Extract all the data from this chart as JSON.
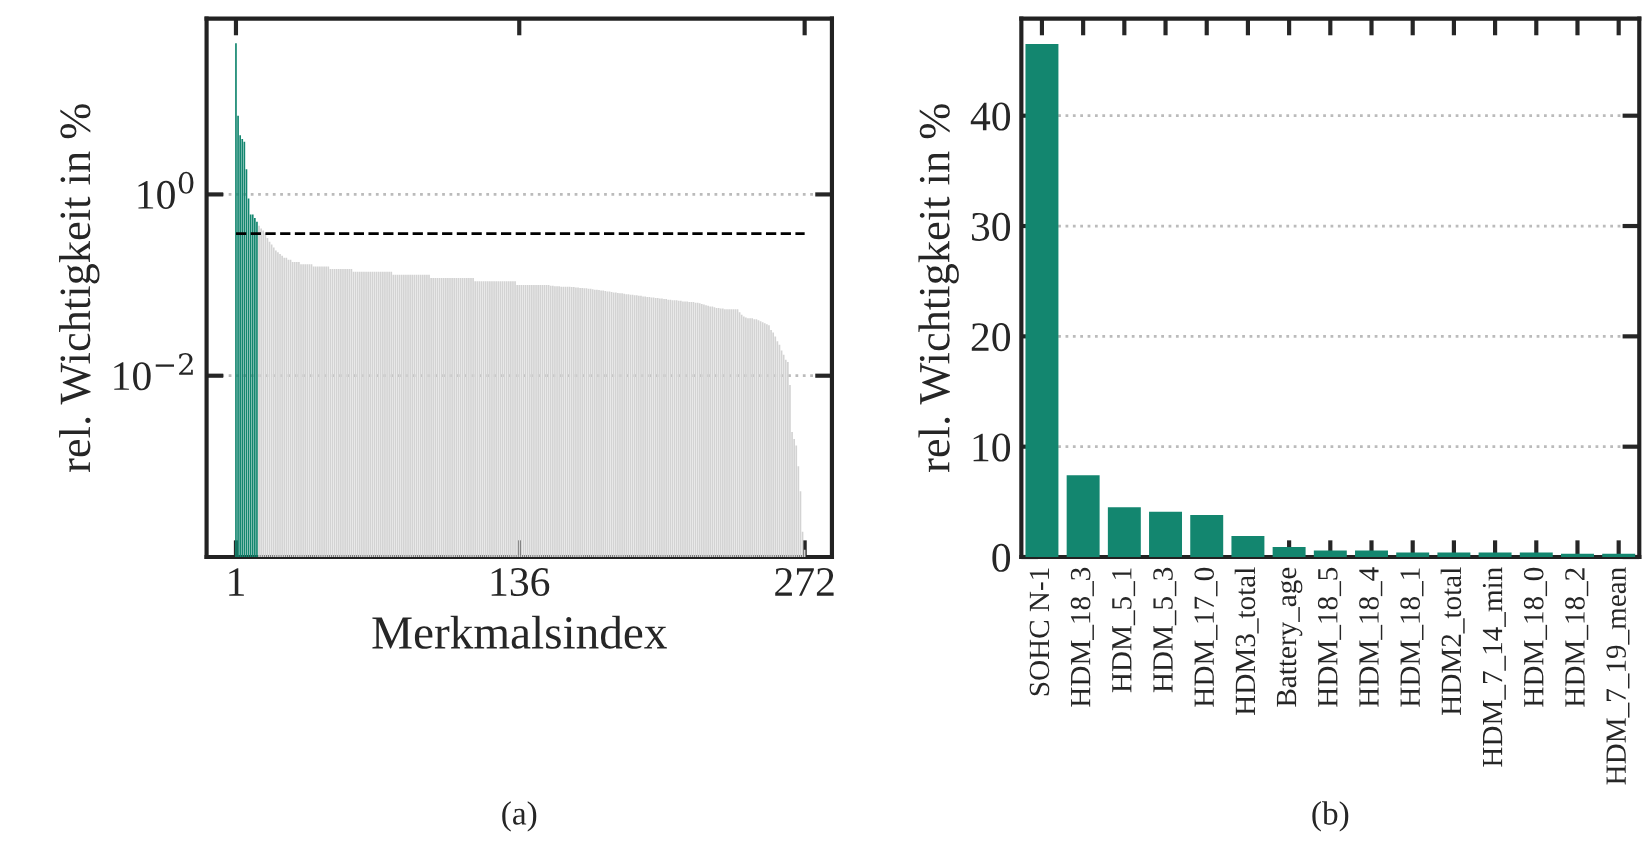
{
  "chart_data": [
    {
      "type": "bar",
      "xlabel": "Merkmalsindex",
      "ylabel": "rel. Wichtigkeit in %",
      "log": "y",
      "grid": "y",
      "xlim": [
        -13,
        285
      ],
      "xticks": [
        1,
        136,
        272
      ],
      "ylim": [
        0.0001,
        87
      ],
      "yticks": [
        {
          "value": 1,
          "label": "10$^{0}$"
        },
        {
          "value": 0.01,
          "label": "10$^{−2}$"
        }
      ],
      "ref_lines": [
        {
          "axis": "y",
          "value": 0.37,
          "color": "#000000",
          "line_style": "dashed"
        }
      ],
      "annotations": [
        "(a)"
      ],
      "series": [
        {
          "color": "#13866f",
          "x": [
            1,
            2,
            3,
            4,
            5,
            6,
            7,
            8,
            9,
            10,
            11
          ],
          "values": [
            46.5,
            7.4,
            4.5,
            4.1,
            3.8,
            1.9,
            0.9,
            0.6,
            0.6,
            0.55,
            0.5
          ]
        },
        {
          "color": "#d3d3d3",
          "x": [
            12,
            13,
            14,
            15,
            16,
            17,
            18,
            19,
            20,
            21,
            22,
            23,
            24,
            25,
            26,
            27,
            28,
            29,
            30,
            31,
            32,
            33,
            34,
            35,
            36,
            37,
            38,
            39,
            40,
            41,
            42,
            43,
            44,
            45,
            46,
            47,
            48,
            49,
            50,
            51,
            52,
            53,
            54,
            55,
            56,
            57,
            58,
            59,
            60,
            61,
            62,
            63,
            64,
            65,
            66,
            67,
            68,
            69,
            70,
            71,
            72,
            73,
            74,
            75,
            76,
            77,
            78,
            79,
            80,
            81,
            82,
            83,
            84,
            85,
            86,
            87,
            88,
            89,
            90,
            91,
            92,
            93,
            94,
            95,
            96,
            97,
            98,
            99,
            100,
            101,
            102,
            103,
            104,
            105,
            106,
            107,
            108,
            109,
            110,
            111,
            112,
            113,
            114,
            115,
            116,
            117,
            118,
            119,
            120,
            121,
            122,
            123,
            124,
            125,
            126,
            127,
            128,
            129,
            130,
            131,
            132,
            133,
            134,
            135,
            136,
            137,
            138,
            139,
            140,
            141,
            142,
            143,
            144,
            145,
            146,
            147,
            148,
            149,
            150,
            151,
            152,
            153,
            154,
            155,
            156,
            157,
            158,
            159,
            160,
            161,
            162,
            163,
            164,
            165,
            166,
            167,
            168,
            169,
            170,
            171,
            172,
            173,
            174,
            175,
            176,
            177,
            178,
            179,
            180,
            181,
            182,
            183,
            184,
            185,
            186,
            187,
            188,
            189,
            190,
            191,
            192,
            193,
            194,
            195,
            196,
            197,
            198,
            199,
            200,
            201,
            202,
            203,
            204,
            205,
            206,
            207,
            208,
            209,
            210,
            211,
            212,
            213,
            214,
            215,
            216,
            217,
            218,
            219,
            220,
            221,
            222,
            223,
            224,
            225,
            226,
            227,
            228,
            229,
            230,
            231,
            232,
            233,
            234,
            235,
            236,
            237,
            238,
            239,
            240,
            241,
            242,
            243,
            244,
            245,
            246,
            247,
            248,
            249,
            250,
            251,
            252,
            253,
            254,
            255,
            256,
            257,
            258,
            259,
            260,
            261,
            262,
            263,
            264,
            265,
            266,
            267,
            268,
            269,
            270,
            271,
            272
          ],
          "values": [
            0.45,
            0.42,
            0.4,
            0.37,
            0.33,
            0.3,
            0.28,
            0.26,
            0.24,
            0.23,
            0.22,
            0.21,
            0.2,
            0.2,
            0.19,
            0.19,
            0.18,
            0.18,
            0.18,
            0.18,
            0.17,
            0.17,
            0.17,
            0.17,
            0.17,
            0.17,
            0.16,
            0.16,
            0.16,
            0.16,
            0.16,
            0.16,
            0.16,
            0.16,
            0.15,
            0.15,
            0.15,
            0.15,
            0.15,
            0.15,
            0.15,
            0.15,
            0.15,
            0.15,
            0.15,
            0.14,
            0.14,
            0.14,
            0.14,
            0.14,
            0.14,
            0.14,
            0.14,
            0.14,
            0.14,
            0.14,
            0.14,
            0.14,
            0.14,
            0.14,
            0.14,
            0.14,
            0.14,
            0.14,
            0.13,
            0.13,
            0.13,
            0.13,
            0.13,
            0.13,
            0.13,
            0.13,
            0.13,
            0.13,
            0.13,
            0.13,
            0.13,
            0.13,
            0.13,
            0.13,
            0.13,
            0.13,
            0.12,
            0.12,
            0.12,
            0.12,
            0.12,
            0.12,
            0.12,
            0.12,
            0.12,
            0.12,
            0.12,
            0.12,
            0.12,
            0.12,
            0.12,
            0.12,
            0.12,
            0.12,
            0.12,
            0.12,
            0.12,
            0.11,
            0.11,
            0.11,
            0.11,
            0.11,
            0.11,
            0.11,
            0.11,
            0.11,
            0.11,
            0.11,
            0.11,
            0.11,
            0.11,
            0.11,
            0.11,
            0.11,
            0.11,
            0.11,
            0.11,
            0.1,
            0.1,
            0.1,
            0.1,
            0.1,
            0.1,
            0.1,
            0.1,
            0.1,
            0.1,
            0.1,
            0.1,
            0.1,
            0.1,
            0.1,
            0.1,
            0.098,
            0.098,
            0.097,
            0.097,
            0.097,
            0.096,
            0.096,
            0.096,
            0.096,
            0.096,
            0.095,
            0.095,
            0.094,
            0.094,
            0.093,
            0.093,
            0.092,
            0.092,
            0.091,
            0.091,
            0.09,
            0.089,
            0.089,
            0.088,
            0.087,
            0.087,
            0.086,
            0.085,
            0.085,
            0.084,
            0.083,
            0.083,
            0.082,
            0.081,
            0.081,
            0.08,
            0.079,
            0.079,
            0.078,
            0.078,
            0.077,
            0.077,
            0.076,
            0.076,
            0.075,
            0.075,
            0.074,
            0.074,
            0.073,
            0.073,
            0.072,
            0.072,
            0.071,
            0.071,
            0.07,
            0.07,
            0.069,
            0.069,
            0.068,
            0.068,
            0.068,
            0.067,
            0.067,
            0.066,
            0.066,
            0.066,
            0.065,
            0.065,
            0.065,
            0.064,
            0.064,
            0.063,
            0.062,
            0.061,
            0.06,
            0.059,
            0.058,
            0.058,
            0.057,
            0.056,
            0.056,
            0.055,
            0.055,
            0.054,
            0.054,
            0.054,
            0.054,
            0.054,
            0.054,
            0.054,
            0.05,
            0.047,
            0.045,
            0.044,
            0.043,
            0.043,
            0.043,
            0.042,
            0.042,
            0.041,
            0.04,
            0.039,
            0.038,
            0.037,
            0.036,
            0.032,
            0.03,
            0.027,
            0.024,
            0.022,
            0.019,
            0.017,
            0.015,
            0.0142,
            0.0079,
            0.0024,
            0.002,
            0.0017,
            0.001,
            0.00053,
            0.00019,
            0.00012
          ]
        }
      ]
    },
    {
      "type": "bar",
      "ylabel": "rel. Wichtigkeit in %",
      "grid": "y",
      "color": "#13866f",
      "categories": [
        "SOHC N-1",
        "HDM_18_3",
        "HDM_5_1",
        "HDM_5_3",
        "HDM_17_0",
        "HDM3_total",
        "Battery_age",
        "HDM_18_5",
        "HDM_18_4",
        "HDM_18_1",
        "HDM2_total",
        "HDM_7_14_min",
        "HDM_18_0",
        "HDM_18_2",
        "HDM_7_19_mean"
      ],
      "values": [
        46.5,
        7.4,
        4.5,
        4.1,
        3.8,
        1.9,
        0.9,
        0.6,
        0.6,
        0.4,
        0.4,
        0.4,
        0.4,
        0.3,
        0.3
      ],
      "ylim": [
        0,
        48.8
      ],
      "yticks": [
        0,
        10,
        20,
        30,
        40
      ],
      "annotations": [
        "(b)"
      ]
    }
  ]
}
